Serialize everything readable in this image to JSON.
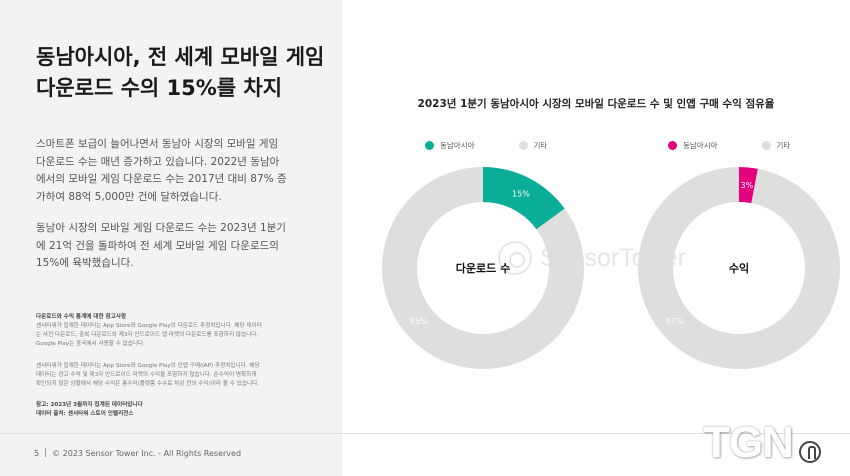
{
  "headline": {
    "line1": "동남아시아, 전 세계 모바일 게임",
    "line2": "다운로드 수의 15%를 차지"
  },
  "paragraph1": [
    "스마트폰 보급이 늘어나면서 동남아 시장의 모바일 게임",
    "다운로드 수는 매년 증가하고 있습니다. 2022년 동남아",
    "에서의 모바일 게임 다운로드 수는 2017년 대비 87% 증",
    "가하여 88억 5,000만 건에 달하였습니다."
  ],
  "paragraph2": [
    "동남아 시장의 모바일 게임 다운로드 수는 2023년 1분기",
    "에 21억 건을 돌파하여 전 세계 모바일 게임 다운로드의",
    "15%에 육박했습니다."
  ],
  "notes": {
    "heading": "다운로드와 수익 통계에 대한 참고사항",
    "block1": [
      "센서타워가 집계한 데이터는 App Store와 Google Play의 다운로드 추정치입니다. 해당 데이터",
      "는 사전 다운로드, 중복 다운로드와 제3자 안드로이드 앱 마켓의 다운로드를 포함하지 않습니다.",
      "Google Play는 중국에서 사용할 수 없습니다."
    ],
    "block2": [
      "센서타워가 집계한 데이터는 App Store와 Google Play의 인앱 구매(IAP) 추정치입니다. 해당",
      "데이터는 광고 수익 및 제3자 안드로이드 마켓의 수익을 포함하지 않습니다. 순수익이 명확하게",
      "확인되지 않은 상황에서 해당 수익은 총수익(플랫폼 수수료 차감 전의 수익)이라 볼 수 있습니다."
    ],
    "ref": "참고: 2023년 3월까지 집계된 데이터입니다",
    "source": "데이터 출처: 센서타워 스토어 인텔리전스"
  },
  "footer": {
    "page": "5",
    "copyright": "© 2023 Sensor Tower Inc. - All Rights Reserved"
  },
  "watermark": "SensorTower",
  "logo": "TGN",
  "colors": {
    "downloads_accent": "#0aae97",
    "revenue_accent": "#e5007e",
    "other": "#dedede"
  },
  "chart_data": [
    {
      "type": "pie",
      "title": "2023년 1분기 동남아시아 시장의 모바일 다운로드 수 및 인앱 구매 수익 점유율",
      "center_label": "다운로드 수",
      "categories": [
        "동남아시아",
        "기타"
      ],
      "values": [
        15,
        85
      ],
      "labels": [
        "15%",
        "85%"
      ],
      "colors": [
        "#0aae97",
        "#dedede"
      ],
      "legend": "top"
    },
    {
      "type": "pie",
      "center_label": "수익",
      "categories": [
        "동남아시아",
        "기타"
      ],
      "values": [
        3,
        97
      ],
      "labels": [
        "3%",
        "97%"
      ],
      "colors": [
        "#e5007e",
        "#dedede"
      ],
      "legend": "top"
    }
  ]
}
